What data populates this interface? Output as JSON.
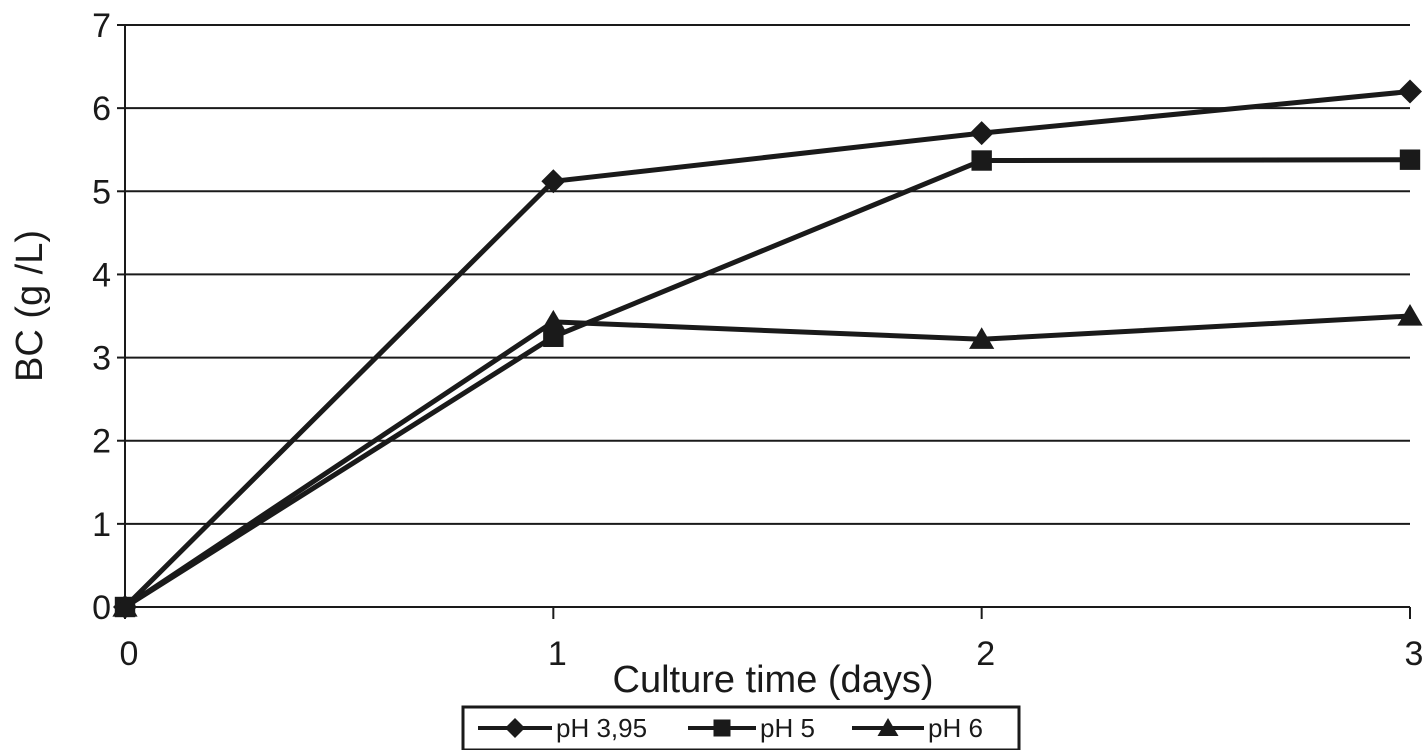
{
  "chart_data": {
    "type": "line",
    "title": "",
    "xlabel": "Culture time (days)",
    "ylabel": "BC (g /L)",
    "x": [
      0,
      1,
      2,
      3
    ],
    "x_ticks": [
      "0",
      "1",
      "2",
      "3"
    ],
    "y_ticks": [
      "0",
      "1",
      "2",
      "3",
      "4",
      "5",
      "6",
      "7"
    ],
    "xlim": [
      0,
      3
    ],
    "ylim": [
      0,
      7
    ],
    "grid": "horizontal",
    "legend_position": "bottom",
    "series": [
      {
        "name": "pH 3,95",
        "marker": "diamond",
        "values": [
          0,
          5.12,
          5.7,
          6.2
        ]
      },
      {
        "name": "pH 5",
        "marker": "square",
        "values": [
          0,
          3.25,
          5.37,
          5.38
        ]
      },
      {
        "name": "pH 6",
        "marker": "triangle",
        "values": [
          0,
          3.43,
          3.22,
          3.5
        ]
      }
    ],
    "colors": {
      "line": "#1a1a1a",
      "grid": "#1a1a1a"
    }
  }
}
